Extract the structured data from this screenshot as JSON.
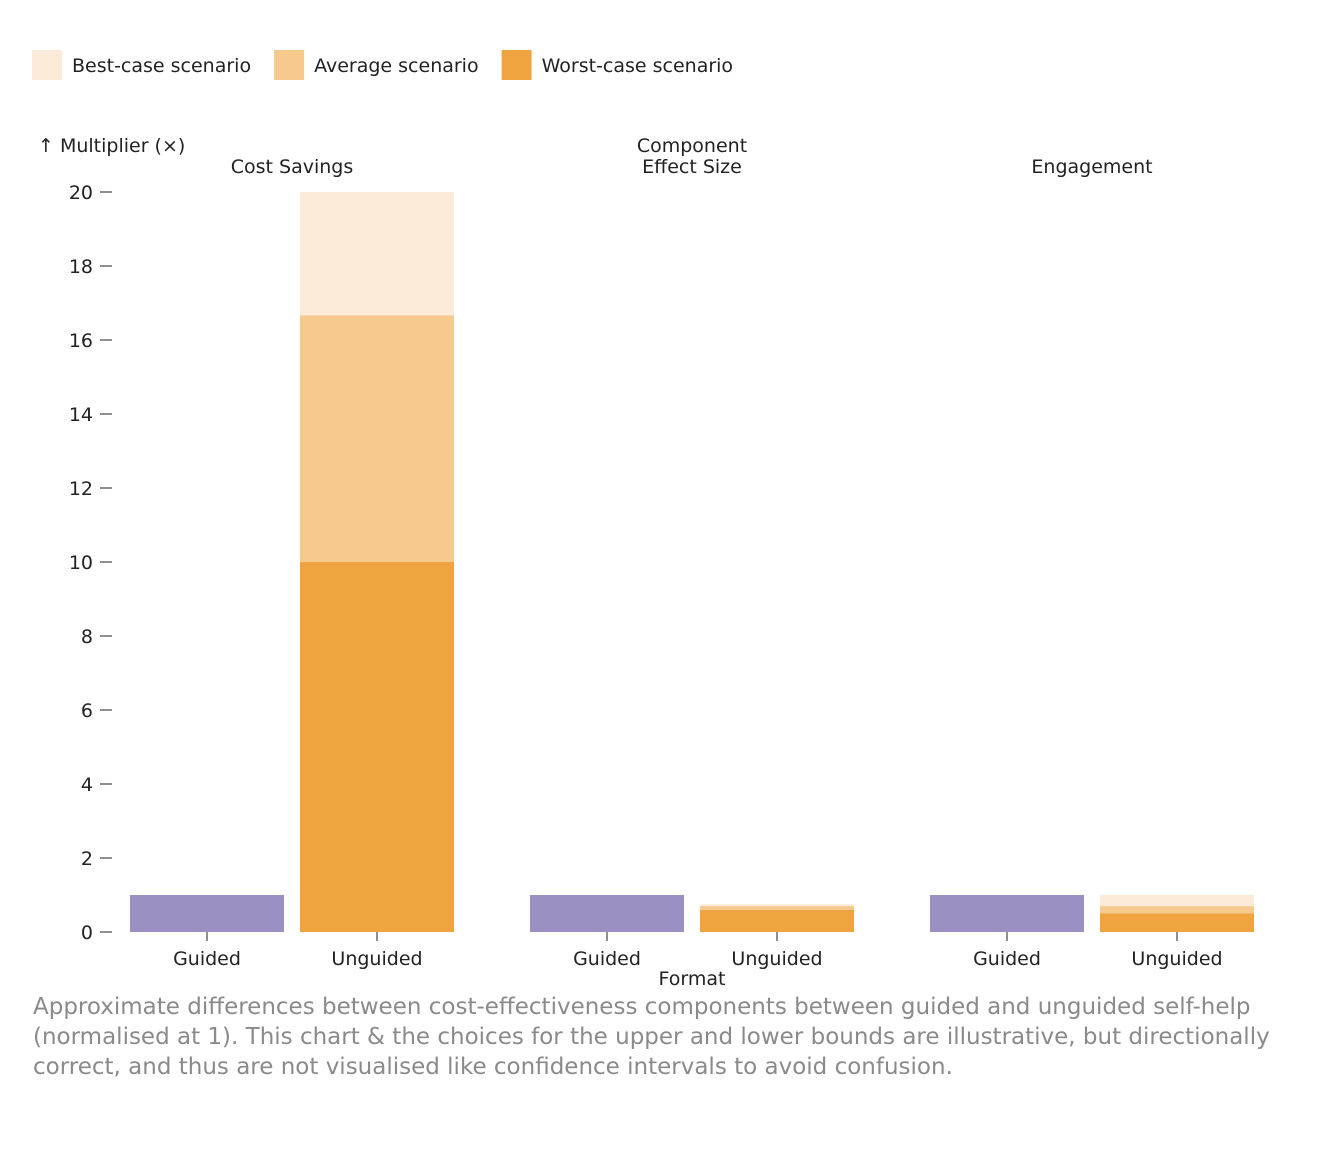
{
  "chart_data": {
    "type": "bar",
    "stacked": true,
    "y_label": "↑ Multiplier (×)",
    "x_label": "Format",
    "caption": "Approximate differences between cost-effectiveness components between guided and unguided self-help (normalised at 1). This chart & the choices for the upper and lower bounds are illustrative, but directionally correct, and thus are not visualised like confidence intervals to avoid confusion.",
    "categories": [
      "Guided",
      "Unguided"
    ],
    "guided_color": "#9b8fc4",
    "series": [
      {
        "name": "Best-case scenario",
        "color": "#fcebd8"
      },
      {
        "name": "Average scenario",
        "color": "#f6c98f"
      },
      {
        "name": "Worst-case scenario",
        "color": "#f0a43f"
      }
    ],
    "facets": [
      {
        "title": [
          "Cost Savings"
        ],
        "guided": 1,
        "unguided": [
          3.33,
          6.67,
          10
        ]
      },
      {
        "title": [
          "Component",
          "Effect Size"
        ],
        "guided": 1,
        "unguided": [
          0.05,
          0.1,
          0.6
        ]
      },
      {
        "title": [
          "Engagement"
        ],
        "guided": 1,
        "unguided": [
          0.3,
          0.2,
          0.5
        ]
      }
    ],
    "ylim": [
      0,
      20
    ],
    "yticks": [
      0,
      2,
      4,
      6,
      8,
      10,
      12,
      14,
      16,
      18,
      20
    ]
  }
}
